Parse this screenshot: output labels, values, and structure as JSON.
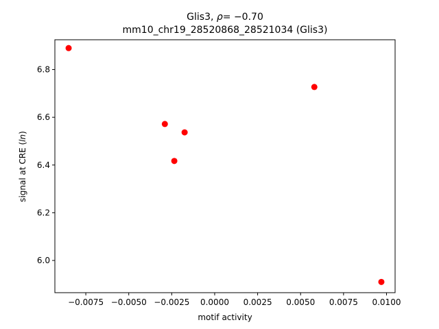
{
  "chart_data": {
    "type": "scatter",
    "title_prefix": "Glis3, ",
    "title_rho": "ρ",
    "title_value": "= −0.70",
    "subtitle": "mm10_chr19_28520868_28521034 (Glis3)",
    "xlabel": "motif activity",
    "ylabel_prefix": "signal at CRE (",
    "ylabel_italic": "ln",
    "ylabel_suffix": ")",
    "xlim": [
      -0.0093,
      0.0105
    ],
    "ylim": [
      5.865,
      6.925
    ],
    "x_ticks": [
      -0.0075,
      -0.005,
      -0.0025,
      0.0,
      0.0025,
      0.005,
      0.0075,
      0.01
    ],
    "x_tick_labels": [
      "−0.0075",
      "−0.0050",
      "−0.0025",
      "0.0000",
      "0.0025",
      "0.0050",
      "0.0075",
      "0.0100"
    ],
    "y_ticks": [
      6.0,
      6.2,
      6.4,
      6.6,
      6.8
    ],
    "y_tick_labels": [
      "6.0",
      "6.2",
      "6.4",
      "6.6",
      "6.8"
    ],
    "grid": false,
    "point_color": "#ff0000",
    "points": [
      {
        "x": -0.0085,
        "y": 6.89
      },
      {
        "x": -0.0029,
        "y": 6.572
      },
      {
        "x": -0.00175,
        "y": 6.537
      },
      {
        "x": -0.00235,
        "y": 6.417
      },
      {
        "x": 0.0058,
        "y": 6.727
      },
      {
        "x": 0.0097,
        "y": 5.91
      }
    ]
  }
}
